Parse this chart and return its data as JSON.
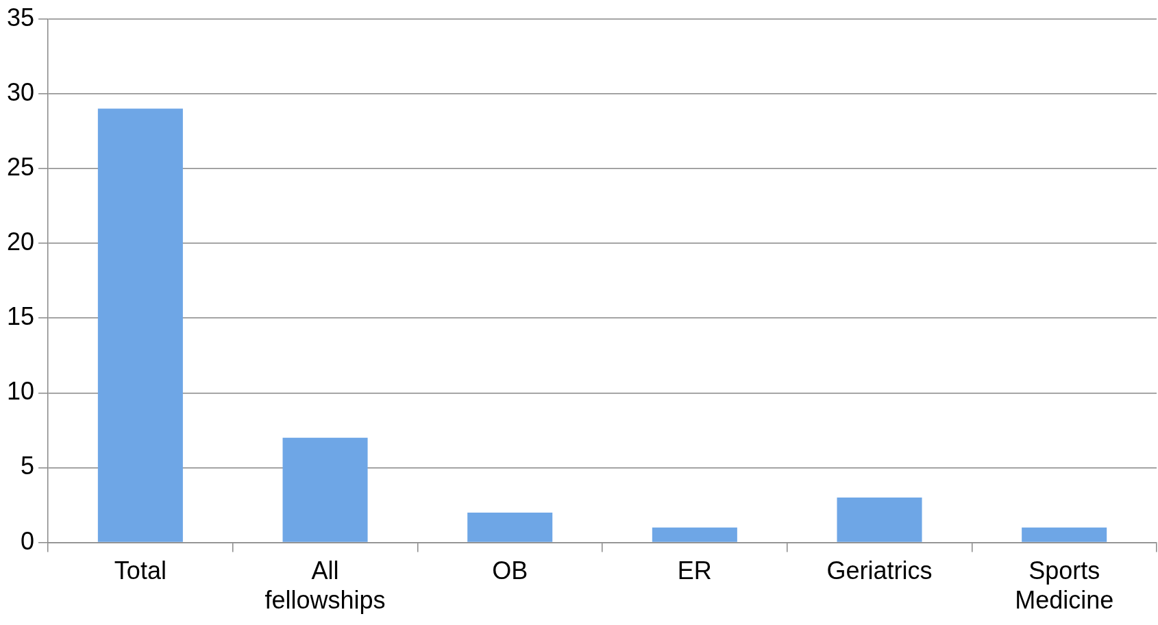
{
  "chart_data": {
    "type": "bar",
    "categories": [
      "Total",
      "All fellowships",
      "OB",
      "ER",
      "Geriatrics",
      "Sports Medicine"
    ],
    "values": [
      29,
      7,
      2,
      1,
      3,
      1
    ],
    "color": "#6ea6e6",
    "ylim": [
      0,
      35
    ],
    "yticks": [
      0,
      5,
      10,
      15,
      20,
      25,
      30,
      35
    ],
    "grid": "y",
    "legend": false
  }
}
